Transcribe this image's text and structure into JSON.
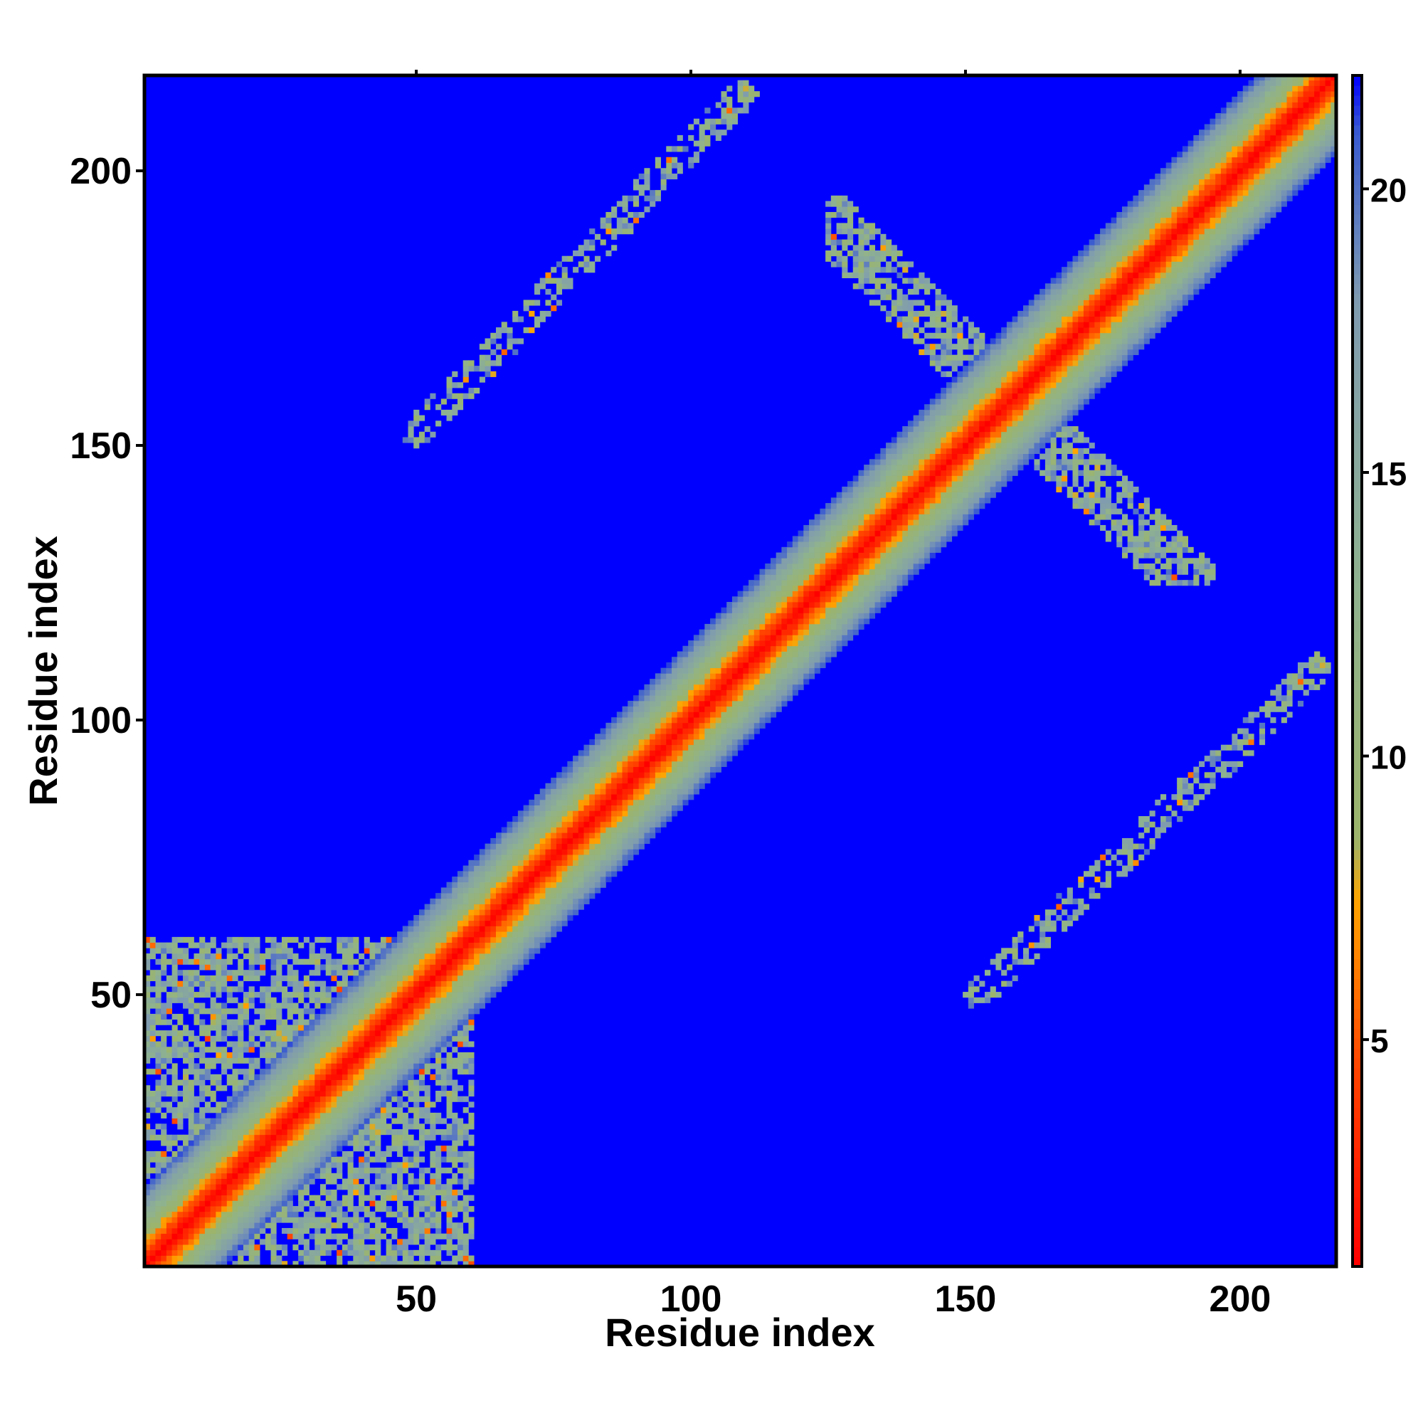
{
  "chart_data": {
    "type": "heatmap",
    "title": "",
    "xlabel": "Residue index",
    "ylabel": "Residue index",
    "xlim": [
      1,
      217
    ],
    "ylim": [
      1,
      217
    ],
    "x_ticks": [
      50,
      100,
      150,
      200
    ],
    "y_ticks": [
      50,
      100,
      150,
      200
    ],
    "colorbar": {
      "range": [
        1,
        22
      ],
      "ticks": [
        5,
        10,
        15,
        20
      ],
      "colors": [
        {
          "value": 1,
          "color": "#ff0000"
        },
        {
          "value": 4.5,
          "color": "#ff4400"
        },
        {
          "value": 7.5,
          "color": "#ffa500"
        },
        {
          "value": 8.5,
          "color": "#9cb46a"
        },
        {
          "value": 13,
          "color": "#8fb28f"
        },
        {
          "value": 18,
          "color": "#7f9bb0"
        },
        {
          "value": 21,
          "color": "#3a5bd0"
        },
        {
          "value": 22,
          "color": "#0000ff"
        }
      ]
    },
    "background_value": 22,
    "background_color": "#0000ff",
    "diagonal_band_halfwidth": 14,
    "contact_regions": [
      {
        "x_range": [
          1,
          60
        ],
        "y_range": [
          1,
          60
        ],
        "description": "N-terminal cluster"
      },
      {
        "x_range": [
          125,
          195
        ],
        "y_range": [
          125,
          195
        ],
        "description": "anti-diagonal cross"
      },
      {
        "x_range": [
          48,
          110
        ],
        "y_range": [
          150,
          215
        ],
        "description": "upper-left arm"
      },
      {
        "x_range": [
          150,
          215
        ],
        "y_range": [
          48,
          110
        ],
        "description": "lower-right arm"
      }
    ]
  }
}
